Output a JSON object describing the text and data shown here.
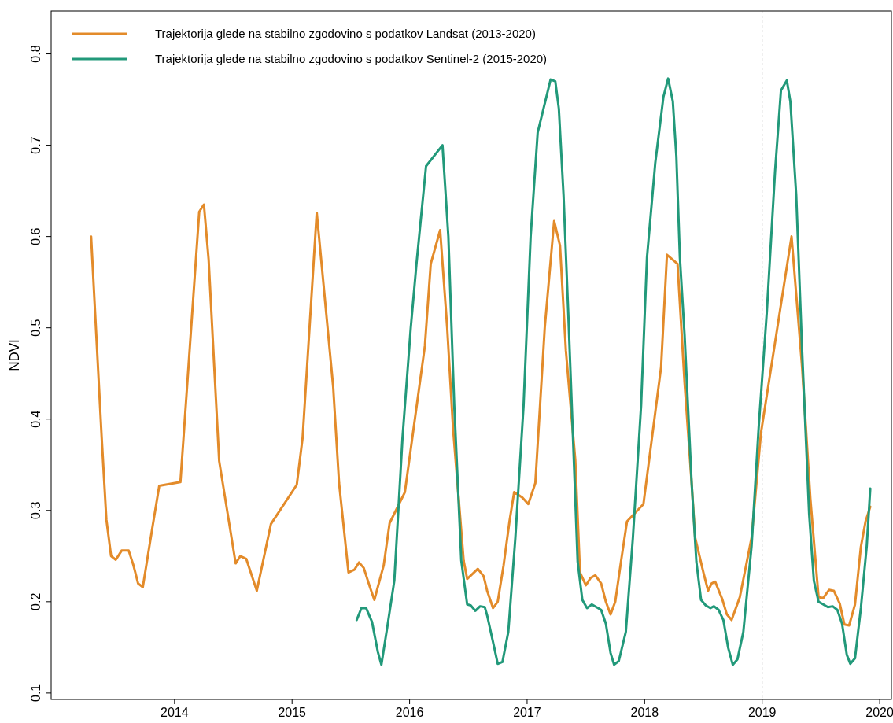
{
  "chart_data": {
    "type": "line",
    "ylabel": "NDVI",
    "xlim": [
      2012.95,
      2020.1
    ],
    "ylim": [
      0.093,
      0.847
    ],
    "xticks": [
      2014,
      2015,
      2016,
      2017,
      2018,
      2019,
      2020
    ],
    "yticks": [
      0.1,
      0.2,
      0.3,
      0.4,
      0.5,
      0.6,
      0.7,
      0.8
    ],
    "grid": false,
    "legend": "top left",
    "marker": "none",
    "line_style": "solid",
    "ref_lines": [
      {
        "axis": "x",
        "value": 2019,
        "color": "#aaaaaa",
        "line_style": "dotted"
      }
    ],
    "series": [
      {
        "name": "Trajektorija glede na stabilno zgodovino s podatkov Landsat (2013-2020)",
        "color": "#e38b2a",
        "x": [
          2013.29,
          2013.38,
          2013.42,
          2013.46,
          2013.5,
          2013.55,
          2013.61,
          2013.65,
          2013.69,
          2013.73,
          2013.81,
          2013.87,
          2014.05,
          2014.12,
          2014.21,
          2014.25,
          2014.29,
          2014.38,
          2014.46,
          2014.52,
          2014.56,
          2014.61,
          2014.7,
          2014.82,
          2015.04,
          2015.09,
          2015.21,
          2015.35,
          2015.4,
          2015.48,
          2015.53,
          2015.57,
          2015.61,
          2015.66,
          2015.7,
          2015.78,
          2015.83,
          2015.96,
          2016.13,
          2016.18,
          2016.26,
          2016.32,
          2016.37,
          2016.46,
          2016.49,
          2016.58,
          2016.63,
          2016.66,
          2016.71,
          2016.75,
          2016.8,
          2016.85,
          2016.89,
          2016.96,
          2017.01,
          2017.07,
          2017.15,
          2017.23,
          2017.28,
          2017.33,
          2017.41,
          2017.45,
          2017.5,
          2017.54,
          2017.58,
          2017.63,
          2017.67,
          2017.71,
          2017.75,
          2017.8,
          2017.85,
          2017.99,
          2018.14,
          2018.19,
          2018.28,
          2018.34,
          2018.4,
          2018.43,
          2018.5,
          2018.54,
          2018.57,
          2018.6,
          2018.66,
          2018.7,
          2018.74,
          2018.81,
          2018.91,
          2018.99,
          2019.25,
          2019.34,
          2019.41,
          2019.48,
          2019.52,
          2019.57,
          2019.61,
          2019.66,
          2019.7,
          2019.74,
          2019.79,
          2019.84,
          2019.88,
          2019.92
        ],
        "values": [
          0.6,
          0.38,
          0.29,
          0.25,
          0.246,
          0.256,
          0.256,
          0.24,
          0.22,
          0.216,
          0.28,
          0.327,
          0.331,
          0.46,
          0.627,
          0.635,
          0.575,
          0.354,
          0.29,
          0.242,
          0.25,
          0.247,
          0.212,
          0.285,
          0.328,
          0.38,
          0.626,
          0.435,
          0.33,
          0.232,
          0.235,
          0.243,
          0.237,
          0.217,
          0.202,
          0.24,
          0.286,
          0.32,
          0.48,
          0.57,
          0.607,
          0.5,
          0.39,
          0.245,
          0.225,
          0.236,
          0.228,
          0.212,
          0.193,
          0.2,
          0.24,
          0.288,
          0.32,
          0.314,
          0.307,
          0.33,
          0.5,
          0.617,
          0.59,
          0.475,
          0.355,
          0.232,
          0.218,
          0.226,
          0.229,
          0.22,
          0.2,
          0.186,
          0.2,
          0.245,
          0.288,
          0.307,
          0.457,
          0.58,
          0.57,
          0.44,
          0.33,
          0.27,
          0.232,
          0.212,
          0.22,
          0.222,
          0.203,
          0.186,
          0.18,
          0.205,
          0.27,
          0.385,
          0.6,
          0.457,
          0.313,
          0.205,
          0.204,
          0.213,
          0.212,
          0.198,
          0.175,
          0.174,
          0.197,
          0.26,
          0.288,
          0.304
        ]
      },
      {
        "name": "Trajektorija glede na stabilno zgodovino s podatkov Sentinel-2 (2015-2020)",
        "color": "#22997a",
        "x": [
          2015.55,
          2015.59,
          2015.63,
          2015.68,
          2015.73,
          2015.76,
          2015.81,
          2015.87,
          2015.94,
          2016.01,
          2016.06,
          2016.14,
          2016.28,
          2016.33,
          2016.38,
          2016.44,
          2016.49,
          2016.52,
          2016.56,
          2016.6,
          2016.64,
          2016.66,
          2016.72,
          2016.75,
          2016.79,
          2016.84,
          2016.9,
          2016.97,
          2017.03,
          2017.09,
          2017.2,
          2017.24,
          2017.27,
          2017.31,
          2017.35,
          2017.4,
          2017.43,
          2017.47,
          2017.51,
          2017.55,
          2017.59,
          2017.63,
          2017.67,
          2017.71,
          2017.74,
          2017.78,
          2017.84,
          2017.9,
          2017.97,
          2018.02,
          2018.09,
          2018.16,
          2018.2,
          2018.24,
          2018.27,
          2018.3,
          2018.34,
          2018.4,
          2018.44,
          2018.48,
          2018.52,
          2018.56,
          2018.59,
          2018.63,
          2018.67,
          2018.71,
          2018.75,
          2018.79,
          2018.84,
          2018.91,
          2018.97,
          2019.04,
          2019.11,
          2019.16,
          2019.21,
          2019.24,
          2019.29,
          2019.34,
          2019.4,
          2019.44,
          2019.48,
          2019.52,
          2019.56,
          2019.6,
          2019.64,
          2019.68,
          2019.72,
          2019.75,
          2019.79,
          2019.84,
          2019.89,
          2019.92
        ],
        "values": [
          0.18,
          0.193,
          0.193,
          0.178,
          0.145,
          0.131,
          0.172,
          0.223,
          0.38,
          0.5,
          0.572,
          0.677,
          0.7,
          0.6,
          0.415,
          0.245,
          0.197,
          0.196,
          0.19,
          0.195,
          0.194,
          0.185,
          0.15,
          0.132,
          0.134,
          0.167,
          0.27,
          0.415,
          0.6,
          0.714,
          0.772,
          0.77,
          0.74,
          0.645,
          0.517,
          0.347,
          0.244,
          0.202,
          0.193,
          0.197,
          0.194,
          0.191,
          0.176,
          0.144,
          0.131,
          0.135,
          0.167,
          0.27,
          0.415,
          0.577,
          0.68,
          0.753,
          0.773,
          0.748,
          0.688,
          0.577,
          0.492,
          0.33,
          0.244,
          0.202,
          0.196,
          0.193,
          0.195,
          0.191,
          0.18,
          0.15,
          0.131,
          0.137,
          0.167,
          0.261,
          0.39,
          0.518,
          0.672,
          0.76,
          0.771,
          0.748,
          0.645,
          0.475,
          0.296,
          0.223,
          0.2,
          0.197,
          0.194,
          0.195,
          0.191,
          0.176,
          0.142,
          0.132,
          0.138,
          0.193,
          0.261,
          0.324
        ]
      }
    ]
  }
}
